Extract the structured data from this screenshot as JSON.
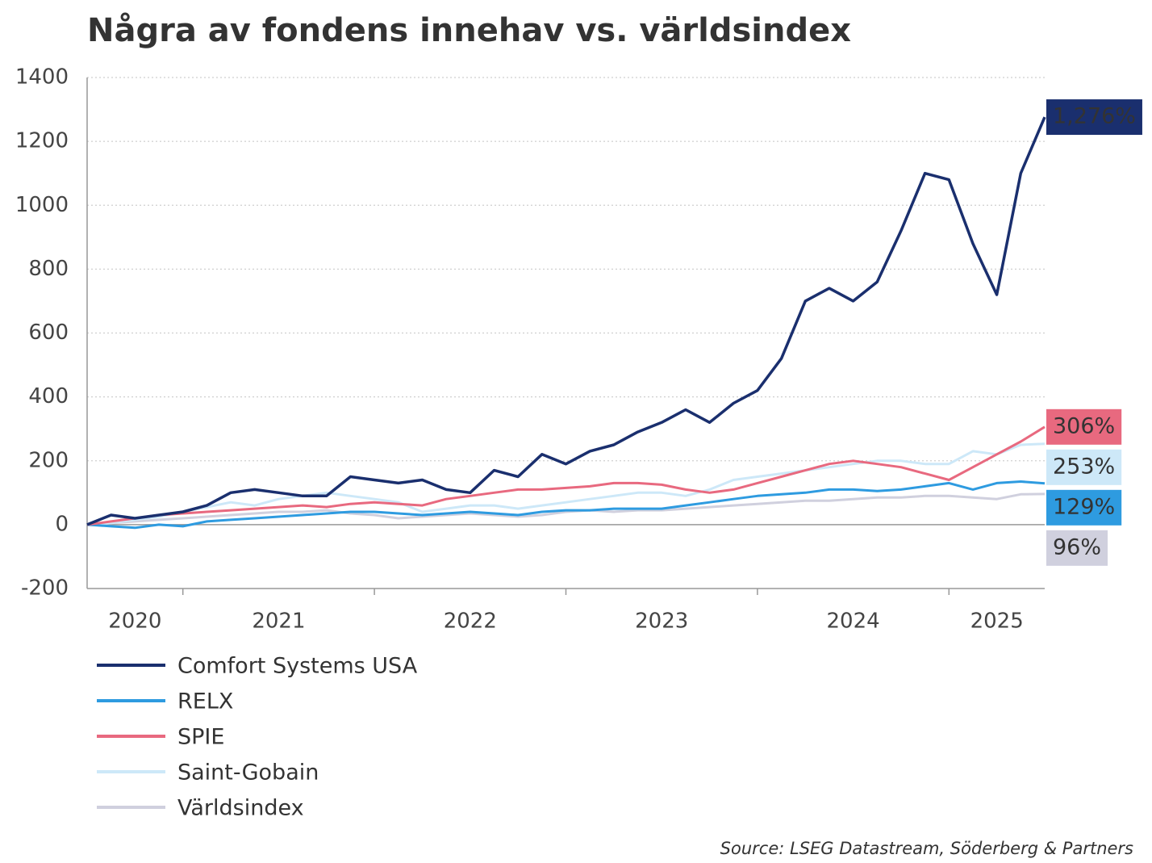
{
  "chart_data": {
    "type": "line",
    "title": "Några av fondens innehav vs. världsindex",
    "source": "Source: LSEG Datastream, Söderberg & Partners",
    "xlim": [
      2020.5,
      2025.5
    ],
    "xticks": [
      2021,
      2022,
      2023,
      2024,
      2025
    ],
    "year_labels": [
      "2020",
      "2021",
      "2022",
      "2023",
      "2024",
      "2025"
    ],
    "ylim": [
      -200,
      1400
    ],
    "yticks": [
      -200,
      0,
      200,
      400,
      600,
      800,
      1000,
      1200,
      1400
    ],
    "grid": true,
    "x": [
      2020.5,
      2020.625,
      2020.75,
      2020.875,
      2021.0,
      2021.125,
      2021.25,
      2021.375,
      2021.5,
      2021.625,
      2021.75,
      2021.875,
      2022.0,
      2022.125,
      2022.25,
      2022.375,
      2022.5,
      2022.625,
      2022.75,
      2022.875,
      2023.0,
      2023.125,
      2023.25,
      2023.375,
      2023.5,
      2023.625,
      2023.75,
      2023.875,
      2024.0,
      2024.125,
      2024.25,
      2024.375,
      2024.5,
      2024.625,
      2024.75,
      2024.875,
      2025.0,
      2025.125,
      2025.25,
      2025.375,
      2025.5
    ],
    "series": [
      {
        "name": "Comfort Systems USA",
        "color": "#1a2f6e",
        "end_label": "1,276%",
        "label_text_color": "#ffffff",
        "values": [
          0,
          30,
          20,
          30,
          40,
          60,
          100,
          110,
          100,
          90,
          90,
          150,
          140,
          130,
          140,
          110,
          100,
          170,
          150,
          220,
          190,
          230,
          250,
          290,
          320,
          360,
          320,
          380,
          420,
          520,
          700,
          740,
          700,
          760,
          920,
          1100,
          1080,
          880,
          720,
          1100,
          1276
        ]
      },
      {
        "name": "RELX",
        "color": "#2e9be0",
        "end_label": "129%",
        "label_text_color": "#ffffff",
        "values": [
          0,
          -5,
          -10,
          0,
          -5,
          10,
          15,
          20,
          25,
          30,
          35,
          40,
          40,
          35,
          30,
          35,
          40,
          35,
          30,
          40,
          45,
          45,
          50,
          50,
          50,
          60,
          70,
          80,
          90,
          95,
          100,
          110,
          110,
          105,
          110,
          120,
          130,
          110,
          130,
          135,
          129
        ]
      },
      {
        "name": "SPIE",
        "color": "#e8697f",
        "end_label": "306%",
        "label_text_color": "#ffffff",
        "values": [
          0,
          10,
          20,
          30,
          35,
          40,
          45,
          50,
          55,
          60,
          55,
          65,
          70,
          65,
          60,
          80,
          90,
          100,
          110,
          110,
          115,
          120,
          130,
          130,
          125,
          110,
          100,
          110,
          130,
          150,
          170,
          190,
          200,
          190,
          180,
          160,
          140,
          180,
          220,
          260,
          306
        ]
      },
      {
        "name": "Saint-Gobain",
        "color": "#cde8f8",
        "end_label": "253%",
        "label_text_color": "#222222",
        "values": [
          0,
          5,
          15,
          25,
          40,
          55,
          70,
          60,
          80,
          90,
          100,
          90,
          80,
          70,
          40,
          50,
          60,
          60,
          50,
          60,
          70,
          80,
          90,
          100,
          100,
          90,
          110,
          140,
          150,
          160,
          170,
          180,
          190,
          200,
          200,
          190,
          190,
          230,
          220,
          250,
          253
        ]
      },
      {
        "name": "Världsindex",
        "color": "#d0d0de",
        "end_label": "96%",
        "label_text_color": "#222222",
        "values": [
          0,
          5,
          10,
          15,
          20,
          25,
          30,
          35,
          40,
          40,
          45,
          35,
          30,
          20,
          25,
          30,
          35,
          30,
          25,
          30,
          40,
          45,
          40,
          45,
          45,
          50,
          55,
          60,
          65,
          70,
          75,
          75,
          80,
          85,
          85,
          90,
          90,
          85,
          80,
          95,
          96
        ]
      }
    ]
  }
}
